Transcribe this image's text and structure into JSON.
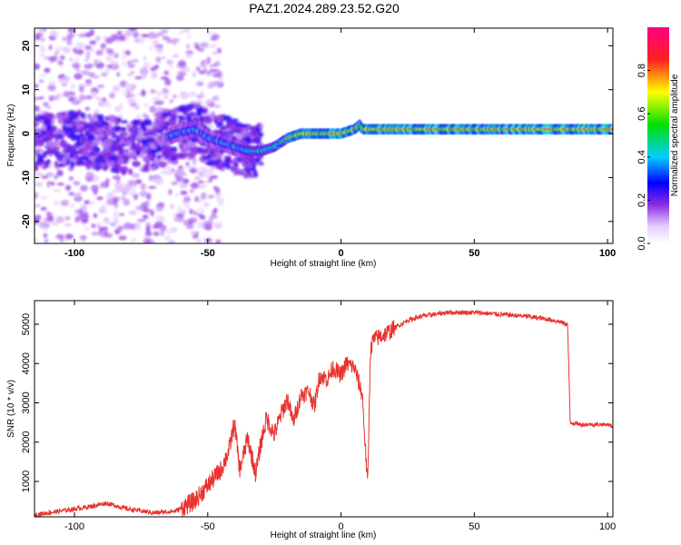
{
  "title": "PAZ1.2024.289.23.52.G20",
  "chart_data": [
    {
      "type": "heatmap",
      "xlabel": "Height of straight line (km)",
      "ylabel": "Frequency (Hz)",
      "xlim": [
        -115,
        102
      ],
      "ylim": [
        -25,
        24
      ],
      "xticks": [
        -100,
        -50,
        0,
        50,
        100
      ],
      "yticks": [
        -20,
        -10,
        0,
        10,
        20
      ],
      "colorbar": {
        "label": "Normalized spectral amplitude",
        "range": [
          0,
          1
        ],
        "ticks": [
          "0.0",
          "0.2",
          "0.4",
          "0.6",
          "0.8"
        ],
        "colormap": "rainbow (white-violet-blue-cyan-green-yellow-red-magenta)"
      },
      "ridge": {
        "x": [
          -115,
          -100,
          -90,
          -80,
          -70,
          -62,
          -55,
          -50,
          -45,
          -40,
          -35,
          -30,
          -25,
          -20,
          -15,
          -10,
          -5,
          0,
          5,
          7,
          8,
          10,
          20,
          30,
          50,
          70,
          90,
          102
        ],
        "frequency": [
          -2,
          -1,
          -2,
          -3,
          -2,
          0,
          1,
          -1,
          -2,
          -3,
          -4,
          -4,
          -3,
          -1,
          0,
          0,
          0,
          0,
          1,
          2,
          1,
          1,
          1,
          1,
          1,
          1,
          1,
          1
        ]
      }
    },
    {
      "type": "line",
      "xlabel": "Height of straight line (km)",
      "ylabel": "SNR (10 * v/v)",
      "xlim": [
        -115,
        102
      ],
      "ylim": [
        100,
        5600
      ],
      "xticks": [
        -100,
        -50,
        0,
        50,
        100
      ],
      "yticks": [
        1000,
        2000,
        3000,
        4000,
        5000
      ],
      "color": "#e8332f",
      "series": [
        {
          "x": [
            -115,
            -105,
            -95,
            -88,
            -80,
            -70,
            -62,
            -55,
            -50,
            -45,
            -42,
            -40,
            -38,
            -35,
            -32,
            -30,
            -28,
            -25,
            -22,
            -20,
            -18,
            -15,
            -12,
            -10,
            -8,
            -5,
            -3,
            0,
            2,
            5,
            8,
            9,
            10,
            11,
            12,
            15,
            18,
            20,
            25,
            30,
            35,
            40,
            50,
            60,
            70,
            80,
            85,
            86,
            90,
            100,
            102
          ],
          "y": [
            150,
            250,
            350,
            450,
            300,
            200,
            250,
            500,
            900,
            1300,
            1800,
            2500,
            1300,
            2100,
            1200,
            2000,
            2600,
            2200,
            2800,
            3100,
            2500,
            3200,
            3300,
            2900,
            3700,
            3600,
            3900,
            3700,
            4000,
            3900,
            3200,
            2000,
            900,
            4300,
            4600,
            4700,
            4800,
            4900,
            5100,
            5200,
            5250,
            5300,
            5300,
            5250,
            5200,
            5100,
            5000,
            2500,
            2450,
            2450,
            2400
          ]
        }
      ]
    }
  ]
}
